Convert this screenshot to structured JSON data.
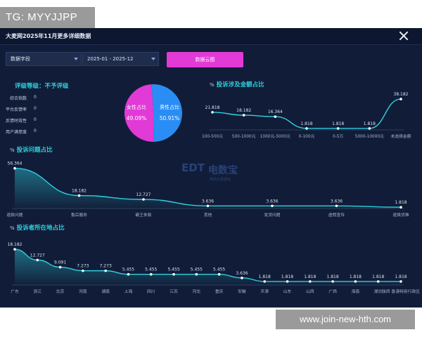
{
  "badges": {
    "tg": "TG: MYYJJPP",
    "url": "www.join-new-hth.com"
  },
  "header": {
    "title": "大麦网2025年11月更多详细数据"
  },
  "controls": {
    "field_select": "数据字段",
    "date_range": "2025-01 - 2025-12",
    "cloud_button": "数据云图"
  },
  "rating": {
    "title": "评级等级：不予评级",
    "items": [
      {
        "label": "综合指数",
        "value": "0"
      },
      {
        "label": "平台反馈率",
        "value": "0"
      },
      {
        "label": "反馈时效性",
        "value": "0"
      },
      {
        "label": "用户满意度",
        "value": "0"
      }
    ]
  },
  "watermark": {
    "brand": "电数宝",
    "sub": "电商大数据库",
    "logo": "EDT"
  },
  "chart_data": [
    {
      "id": "gender_pie",
      "type": "pie",
      "slices": [
        {
          "label": "男性占比",
          "value": 50.91,
          "display": "50.91%",
          "color": "#2a8df5"
        },
        {
          "label": "女性占比",
          "value": 49.09,
          "display": "49.09%",
          "color": "#e13ad6"
        }
      ]
    },
    {
      "id": "amount",
      "type": "line",
      "title": "投诉涉及金额占比",
      "unit": "%",
      "categories": [
        "100-500元",
        "500-1000元",
        "1000元-5000元",
        "0-100元",
        "0-5万",
        "5000-10000元",
        "未选择金额"
      ],
      "values": [
        21.818,
        18.182,
        16.364,
        1.818,
        1.818,
        1.818,
        38.182
      ],
      "labels": [
        "21.818",
        "18.182",
        "16.364",
        "1.818",
        "1.818",
        "1.818",
        "38.182"
      ],
      "ylim": [
        0,
        40
      ],
      "color": "#2fd0df"
    },
    {
      "id": "issue",
      "type": "area",
      "title": "投诉问题占比",
      "unit": "%",
      "categories": [
        "退款问题",
        "售后服务",
        "霸王条款",
        "其他",
        "发货问题",
        "虚假宣传",
        "退换货难"
      ],
      "values": [
        56.364,
        18.182,
        12.727,
        3.636,
        3.636,
        3.636,
        1.818
      ],
      "labels": [
        "56.364",
        "18.182",
        "12.727",
        "3.636",
        "3.636",
        "3.636",
        "1.818"
      ],
      "ylim": [
        0,
        60
      ],
      "color": "#2fd0df"
    },
    {
      "id": "region",
      "type": "area",
      "title": "投诉者所在地占比",
      "unit": "%",
      "categories": [
        "广东",
        "浙江",
        "北京",
        "河南",
        "湖南",
        "上海",
        "四川",
        "江苏",
        "河北",
        "重庆",
        "安徽",
        "天津",
        "山东",
        "山西",
        "广西",
        "海南",
        "湖北",
        "陕西 香港特别行政区"
      ],
      "values": [
        18.182,
        12.727,
        9.091,
        7.273,
        7.273,
        5.455,
        5.455,
        5.455,
        5.455,
        5.455,
        3.636,
        1.818,
        1.818,
        1.818,
        1.818,
        1.818,
        1.818,
        1.818
      ],
      "labels": [
        "18.182",
        "12.727",
        "9.091",
        "7.273",
        "7.273",
        "5.455",
        "5.455",
        "5.455",
        "5.455",
        "5.455",
        "3.636",
        "1.818",
        "1.818",
        "1.818",
        "1.818",
        "1.818",
        "1.818",
        "1.818"
      ],
      "ylim": [
        0,
        20
      ],
      "color": "#2fd0df"
    }
  ]
}
